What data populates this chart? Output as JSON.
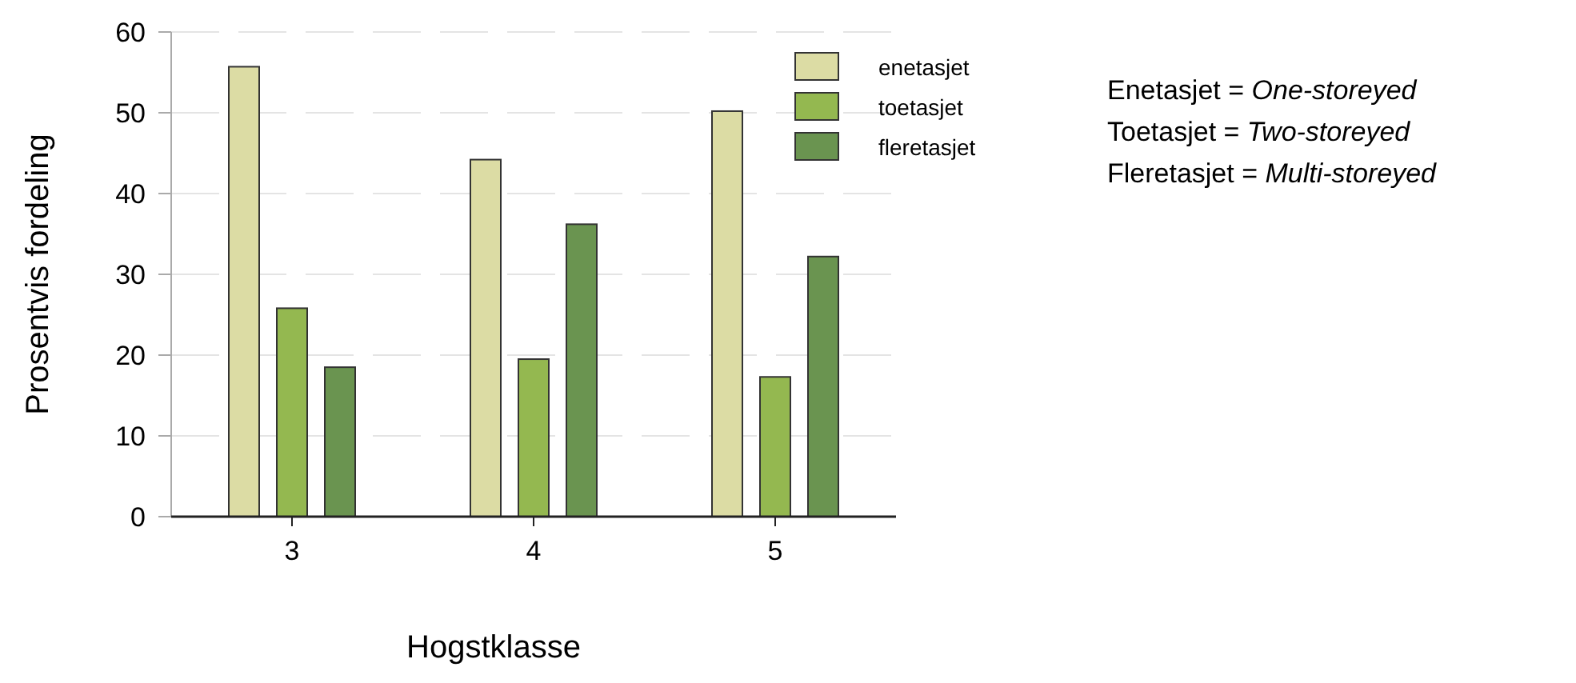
{
  "chart_data": {
    "type": "bar",
    "xlabel": "Hogstklasse",
    "ylabel": "Prosentvis fordeling",
    "categories": [
      "3",
      "4",
      "5"
    ],
    "series": [
      {
        "name": "enetasjet",
        "color": "#dcdca4",
        "values": [
          55.7,
          44.2,
          50.2
        ]
      },
      {
        "name": "toetasjet",
        "color": "#94b850",
        "values": [
          25.8,
          19.5,
          17.3
        ]
      },
      {
        "name": "fleretasjet",
        "color": "#6a9450",
        "values": [
          18.5,
          36.2,
          32.2
        ]
      }
    ],
    "ylim": [
      0,
      60
    ],
    "yticks": [
      0,
      10,
      20,
      30,
      40,
      50,
      60
    ],
    "grid": "y",
    "legend": "top right",
    "annotations": [
      "Enetasjet = One-storeyed",
      "Toetasjet = Two-storeyed",
      "Fleretasjet = Multi-storeyed"
    ]
  }
}
